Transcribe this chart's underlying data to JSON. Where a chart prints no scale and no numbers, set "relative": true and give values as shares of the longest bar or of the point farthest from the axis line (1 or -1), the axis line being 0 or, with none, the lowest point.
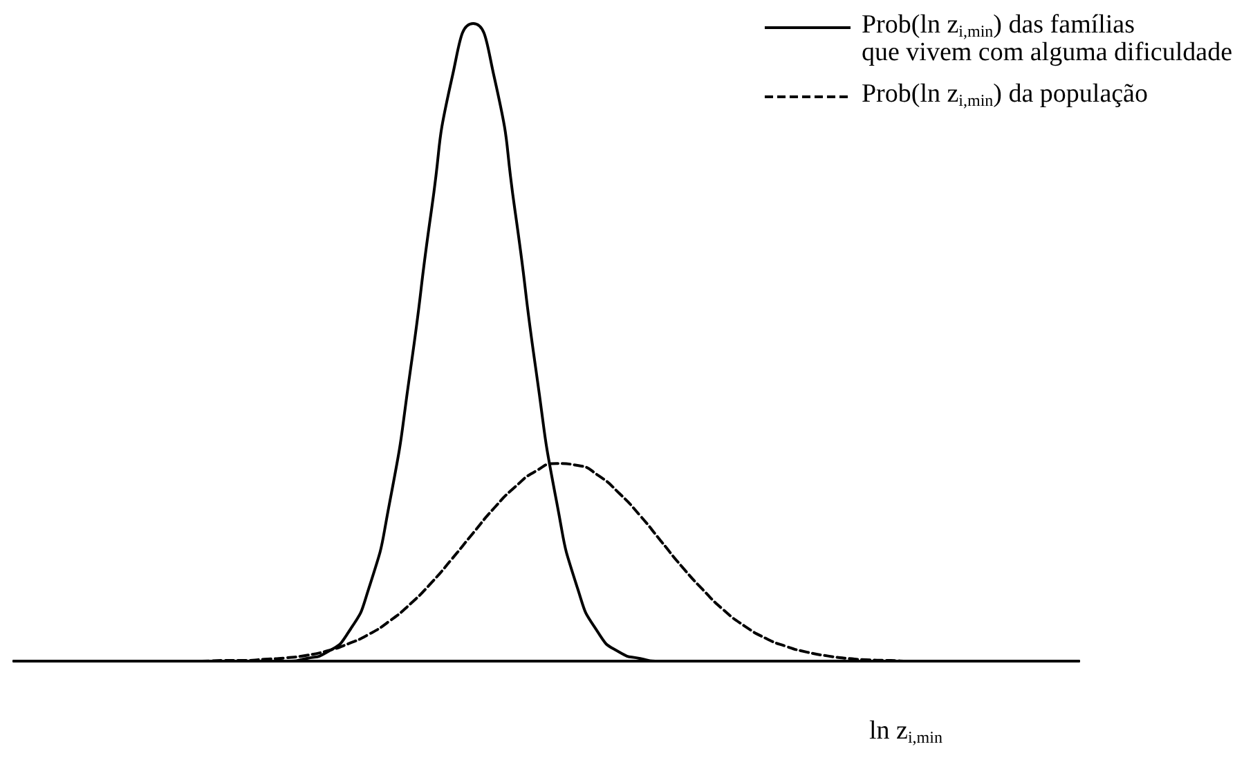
{
  "chart_data": {
    "type": "line",
    "relative": true,
    "xlabel": "ln z$_{i,min}$",
    "legend": "top right",
    "marker": "none",
    "categories": [
      null,
      null,
      null,
      null,
      null,
      null,
      null,
      null,
      null,
      null,
      null,
      null,
      null,
      null,
      null,
      null,
      null,
      null,
      null,
      null,
      null,
      null,
      null,
      null,
      null,
      null,
      null,
      null,
      null,
      null,
      null,
      null,
      null,
      null,
      null,
      null,
      null,
      null,
      null,
      null,
      null,
      null,
      null,
      null,
      null,
      null,
      null,
      null,
      null,
      null,
      null,
      null
    ],
    "series": [
      {
        "name": "Prob(ln z$_{i,min}$) das famílias\nque vivem com alguma dificuldade",
        "color": "#000000",
        "line_style": "solid",
        "values": [
          0,
          0,
          0,
          0,
          0,
          0,
          0,
          0,
          0,
          0,
          0,
          0,
          0,
          0,
          0.004,
          0.014,
          0.044,
          0.114,
          0.249,
          0.458,
          0.707,
          0.917,
          1,
          0.917,
          0.707,
          0.458,
          0.249,
          0.114,
          0.044,
          0.014,
          0.004,
          0,
          0,
          0,
          0,
          0,
          0,
          0,
          0,
          0,
          0,
          0,
          0,
          0,
          0,
          0,
          0,
          0,
          0,
          0,
          0,
          0
        ]
      },
      {
        "name": "Prob(ln z$_{i,min}$) da população",
        "color": "#000000",
        "line_style": "dashed",
        "values": [
          0,
          0,
          0,
          0,
          0,
          0,
          0,
          0,
          0,
          0,
          0.001,
          0.001,
          0.003,
          0.005,
          0.009,
          0.016,
          0.027,
          0.042,
          0.063,
          0.09,
          0.123,
          0.161,
          0.201,
          0.24,
          0.273,
          0.298,
          0.31,
          0.307,
          0.291,
          0.263,
          0.228,
          0.188,
          0.148,
          0.112,
          0.08,
          0.055,
          0.036,
          0.023,
          0.014,
          0.008,
          0.004,
          0.002,
          0.001,
          0,
          0,
          0,
          0,
          0,
          0,
          0,
          0,
          0
        ]
      }
    ]
  }
}
